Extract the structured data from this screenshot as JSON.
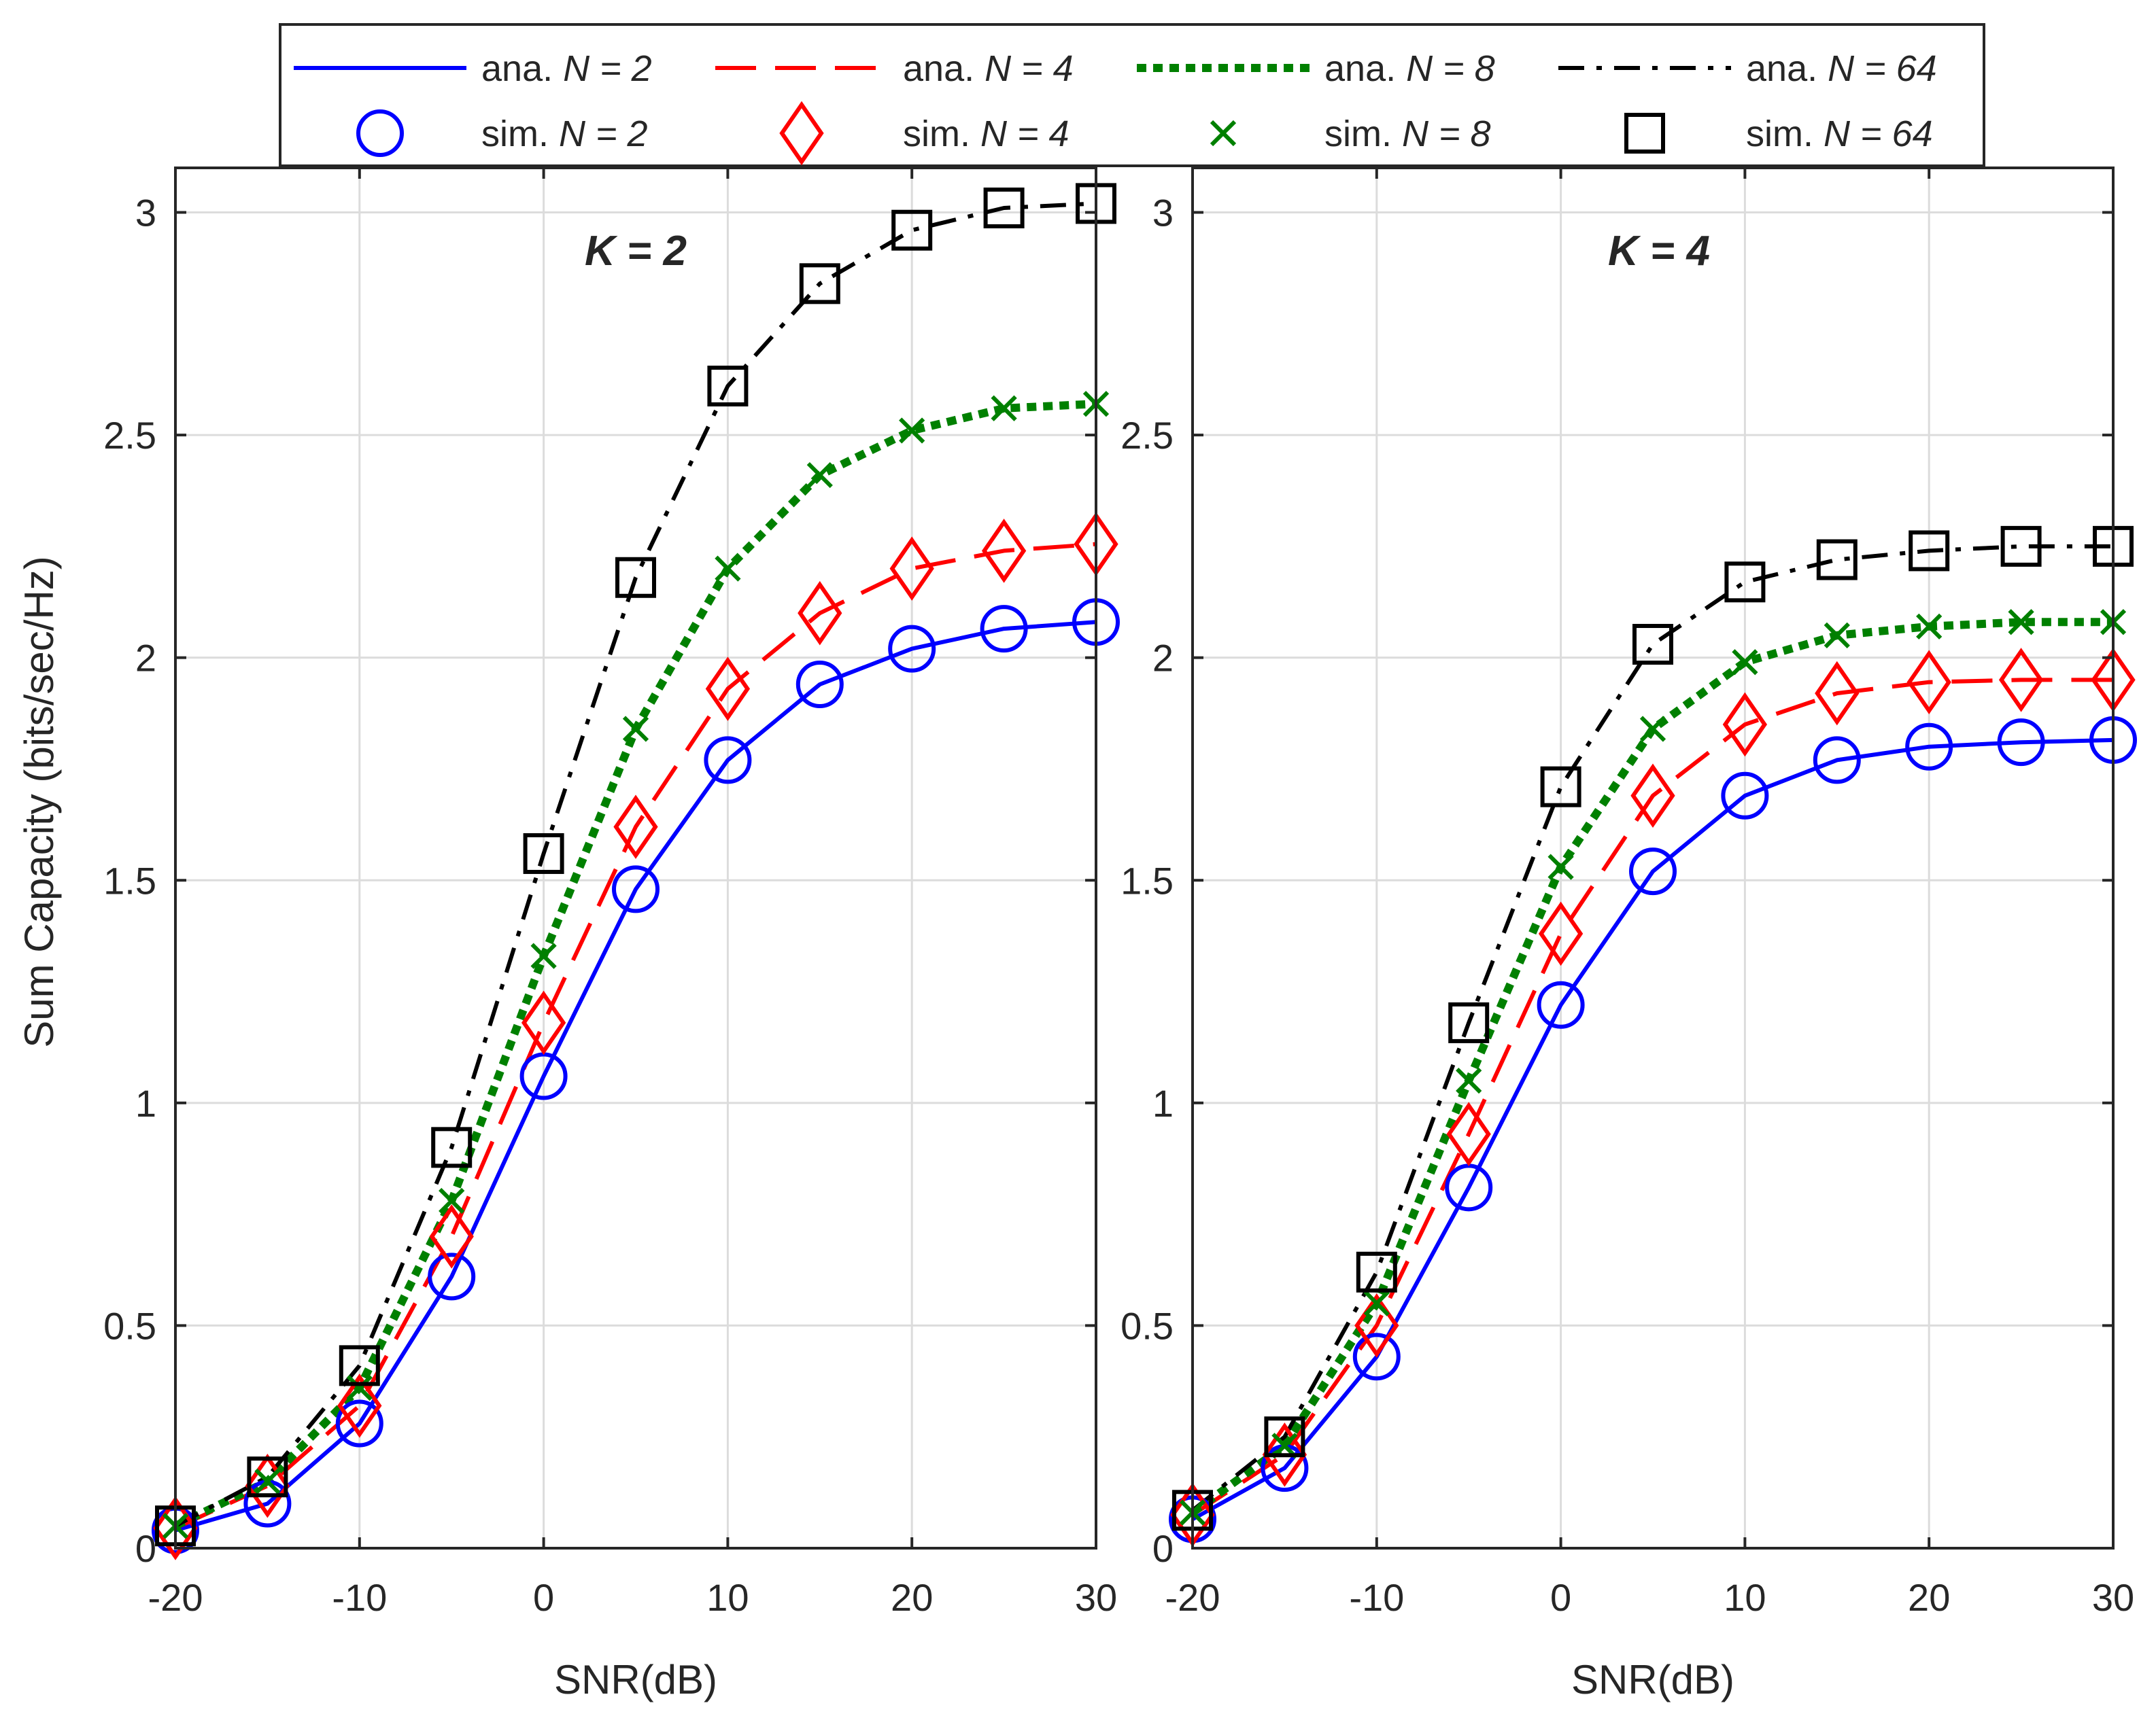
{
  "chart_data": {
    "type": "line",
    "ylabel": "Sum Capacity (bits/sec/Hz)",
    "xlabel": "SNR(dB)",
    "xlim": [
      -20,
      30
    ],
    "ylim": [
      0,
      3.1
    ],
    "x_ticks": [
      -20,
      -10,
      0,
      10,
      20,
      30
    ],
    "y_ticks": [
      0,
      0.5,
      1,
      1.5,
      2,
      2.5,
      3
    ],
    "x": [
      -20,
      -15,
      -10,
      -5,
      0,
      5,
      10,
      15,
      20,
      25,
      30
    ],
    "legend": [
      {
        "label": "ana. N = 2",
        "prefix": "ana. ",
        "italic": "N = 2",
        "kind": "line",
        "color": "#0000ff",
        "dash": "solid"
      },
      {
        "label": "ana. N = 4",
        "prefix": "ana. ",
        "italic": "N = 4",
        "kind": "line",
        "color": "#ff0000",
        "dash": "dashed"
      },
      {
        "label": "ana. N = 8",
        "prefix": "ana. ",
        "italic": "N = 8",
        "kind": "line",
        "color": "#008000",
        "dash": "dotted"
      },
      {
        "label": "ana. N = 64",
        "prefix": "ana. ",
        "italic": "N = 64",
        "kind": "line",
        "color": "#000000",
        "dash": "dashdot"
      },
      {
        "label": "sim. N = 2",
        "prefix": "sim. ",
        "italic": "N = 2",
        "kind": "marker",
        "color": "#0000ff",
        "marker": "circle"
      },
      {
        "label": "sim. N = 4",
        "prefix": "sim. ",
        "italic": "N = 4",
        "kind": "marker",
        "color": "#ff0000",
        "marker": "diamond"
      },
      {
        "label": "sim. N = 8",
        "prefix": "sim. ",
        "italic": "N = 8",
        "kind": "marker",
        "color": "#008000",
        "marker": "x"
      },
      {
        "label": "sim. N = 64",
        "prefix": "sim. ",
        "italic": "N = 64",
        "kind": "marker",
        "color": "#000000",
        "marker": "square"
      }
    ],
    "panels": [
      {
        "title": "K = 2",
        "series": [
          {
            "name": "N = 2",
            "color": "#0000ff",
            "dash": "solid",
            "marker": "circle",
            "values": [
              0.04,
              0.1,
              0.28,
              0.61,
              1.06,
              1.48,
              1.77,
              1.94,
              2.02,
              2.065,
              2.08
            ]
          },
          {
            "name": "N = 4",
            "color": "#ff0000",
            "dash": "dashed",
            "marker": "diamond",
            "values": [
              0.045,
              0.14,
              0.32,
              0.7,
              1.18,
              1.62,
              1.93,
              2.1,
              2.2,
              2.24,
              2.255
            ]
          },
          {
            "name": "N = 8",
            "color": "#008000",
            "dash": "dotted",
            "marker": "x",
            "values": [
              0.05,
              0.15,
              0.36,
              0.78,
              1.33,
              1.84,
              2.2,
              2.41,
              2.51,
              2.56,
              2.57
            ]
          },
          {
            "name": "N = 64",
            "color": "#000000",
            "dash": "dashdot",
            "marker": "square",
            "values": [
              0.05,
              0.16,
              0.41,
              0.9,
              1.56,
              2.18,
              2.61,
              2.84,
              2.96,
              3.01,
              3.02
            ]
          }
        ]
      },
      {
        "title": "K = 4",
        "series": [
          {
            "name": "N = 2",
            "color": "#0000ff",
            "dash": "solid",
            "marker": "circle",
            "values": [
              0.065,
              0.18,
              0.43,
              0.81,
              1.22,
              1.52,
              1.69,
              1.77,
              1.8,
              1.81,
              1.815
            ]
          },
          {
            "name": "N = 4",
            "color": "#ff0000",
            "dash": "dashed",
            "marker": "diamond",
            "values": [
              0.075,
              0.21,
              0.5,
              0.93,
              1.38,
              1.69,
              1.85,
              1.92,
              1.945,
              1.95,
              1.95
            ]
          },
          {
            "name": "N = 8",
            "color": "#008000",
            "dash": "dotted",
            "marker": "x",
            "values": [
              0.08,
              0.23,
              0.55,
              1.05,
              1.53,
              1.84,
              1.99,
              2.05,
              2.07,
              2.08,
              2.08
            ]
          },
          {
            "name": "N = 64",
            "color": "#000000",
            "dash": "dashdot",
            "marker": "square",
            "values": [
              0.085,
              0.25,
              0.62,
              1.18,
              1.71,
              2.03,
              2.17,
              2.22,
              2.24,
              2.25,
              2.25
            ]
          }
        ]
      }
    ]
  }
}
